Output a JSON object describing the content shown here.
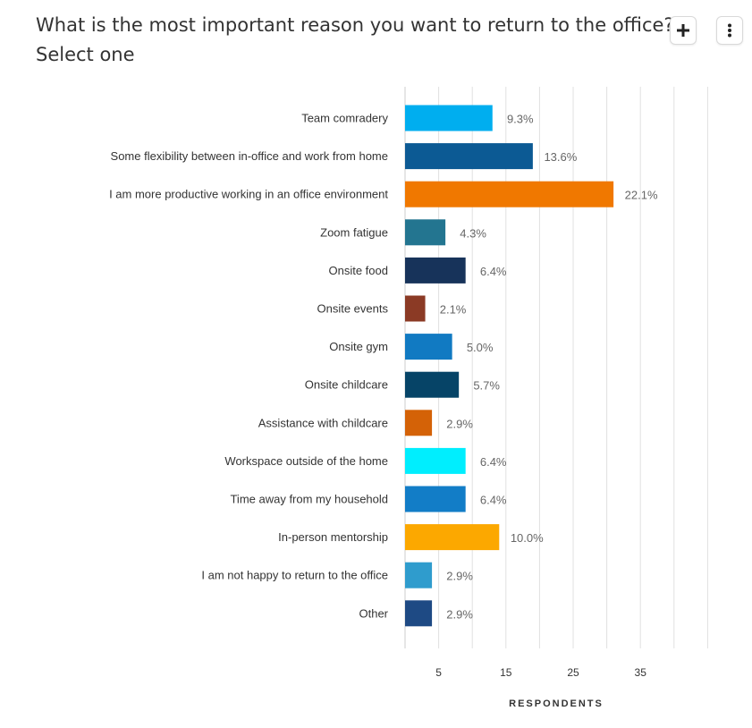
{
  "question": {
    "title": "What is the most important reason you want to return to the office?",
    "instruction": "Select one"
  },
  "toolbar": {
    "add_icon": "plus-icon",
    "menu_icon": "more-vertical-icon"
  },
  "chart_data": {
    "type": "bar",
    "orientation": "horizontal",
    "categories": [
      "Team comradery",
      "Some flexibility between in-office and work from home",
      "I am more productive working in an office environment",
      "Zoom fatigue",
      "Onsite food",
      "Onsite events",
      "Onsite gym",
      "Onsite childcare",
      "Assistance with childcare",
      "Workspace outside of the home",
      "Time away from my household",
      "In-person mentorship",
      "I am not happy to return to the office",
      "Other"
    ],
    "values": [
      13,
      19,
      31,
      6,
      9,
      3,
      7,
      8,
      4,
      9,
      9,
      14,
      4,
      4
    ],
    "value_labels": [
      "9.3%",
      "13.6%",
      "22.1%",
      "4.3%",
      "6.4%",
      "2.1%",
      "5.0%",
      "5.7%",
      "2.9%",
      "6.4%",
      "6.4%",
      "10.0%",
      "2.9%",
      "2.9%"
    ],
    "colors": [
      "#00aeef",
      "#0c5a94",
      "#f07800",
      "#237590",
      "#17335a",
      "#8b3a25",
      "#117ac2",
      "#064467",
      "#d46207",
      "#00eefe",
      "#127dc7",
      "#fca800",
      "#2f9ccd",
      "#1e4a84"
    ],
    "xlabel": "RESPONDENTS",
    "ylabel": "",
    "xlim": [
      0,
      45
    ],
    "xticks": [
      5,
      15,
      25,
      35
    ],
    "grid": true,
    "grid_color": "#e0e0e0"
  }
}
